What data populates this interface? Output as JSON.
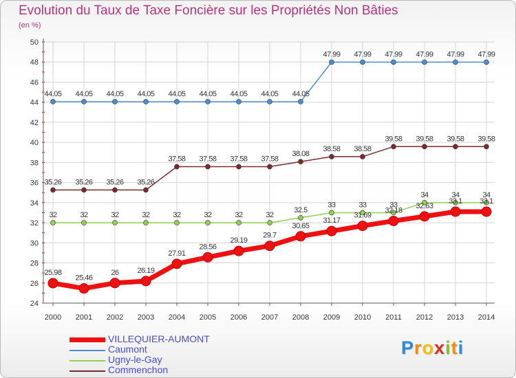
{
  "chart_data": {
    "type": "line",
    "title": "Evolution du Taux de Taxe Foncière sur les Propriétés Non Bâties",
    "ylabel": "(en %)",
    "xlabel": "",
    "ylim": [
      24,
      50
    ],
    "yticks": [
      "24",
      "26",
      "28",
      "30",
      "32",
      "34",
      "36",
      "38",
      "40",
      "42",
      "44",
      "46",
      "48",
      "50"
    ],
    "categories": [
      "2000",
      "2001",
      "2002",
      "2003",
      "2004",
      "2005",
      "2006",
      "2007",
      "2008",
      "2009",
      "2010",
      "2011",
      "2012",
      "2013",
      "2014"
    ],
    "series": [
      {
        "name": "VILLEQUIER-AUMONT",
        "color": "#ee1111",
        "values": [
          25.98,
          25.46,
          26,
          26.19,
          27.91,
          28.56,
          29.19,
          29.7,
          30.65,
          31.17,
          31.69,
          32.18,
          32.63,
          33.1,
          33.1
        ],
        "labels": [
          "25.98",
          "25.46",
          "26",
          "26.19",
          "27.91",
          "28.56",
          "29.19",
          "29.7",
          "30.65",
          "31.17",
          "31.69",
          "32.18",
          "32.63",
          "33.1",
          "33.1"
        ]
      },
      {
        "name": "Caumont",
        "color": "#4c8fd0",
        "values": [
          44.05,
          44.05,
          44.05,
          44.05,
          44.05,
          44.05,
          44.05,
          44.05,
          44.05,
          47.99,
          47.99,
          47.99,
          47.99,
          47.99,
          47.99
        ],
        "labels": [
          "44.05",
          "44.05",
          "44.05",
          "44.05",
          "44.05",
          "44.05",
          "44.05",
          "44.05",
          "44.05",
          "47.99",
          "47.99",
          "47.99",
          "47.99",
          "47.99",
          "47.99"
        ]
      },
      {
        "name": "Ugny-le-Gay",
        "color": "#8fd04f",
        "values": [
          32,
          32,
          32,
          32,
          32,
          32,
          32,
          32,
          32.5,
          33,
          33,
          33,
          34,
          34,
          34
        ],
        "labels": [
          "32",
          "32",
          "32",
          "32",
          "32",
          "32",
          "32",
          "32",
          "32.5",
          "33",
          "33",
          "33",
          "34",
          "34",
          "34"
        ]
      },
      {
        "name": "Commenchon",
        "color": "#7a2a2a",
        "values": [
          35.26,
          35.26,
          35.26,
          35.26,
          37.58,
          37.58,
          37.58,
          37.58,
          38.08,
          38.58,
          38.58,
          39.58,
          39.58,
          39.58,
          39.58
        ],
        "labels": [
          "35.26",
          "35.26",
          "35.26",
          "35.26",
          "37.58",
          "37.58",
          "37.58",
          "37.58",
          "38.08",
          "38.58",
          "38.58",
          "39.58",
          "39.58",
          "39.58",
          "39.58"
        ]
      }
    ],
    "legend_position": "bottom-left"
  },
  "logo": {
    "letters": [
      "P",
      "r",
      "o",
      "x",
      "i",
      "t",
      "i"
    ],
    "colors": [
      "#2c8ad6",
      "#f08c10",
      "#f0c010",
      "#d83020",
      "#80c030",
      "#f08c10",
      "#2c8ad6"
    ]
  }
}
